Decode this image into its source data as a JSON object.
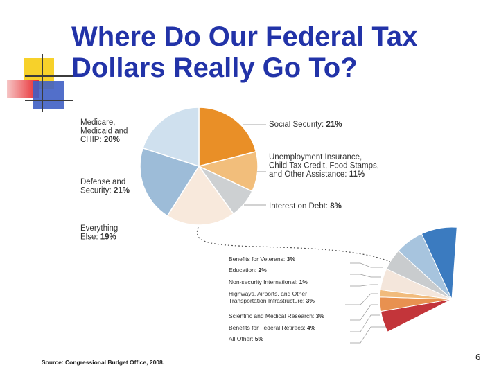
{
  "slide": {
    "title": "Where Do Our Federal Tax\nDollars Really Go To?",
    "source": "Source: Congressional Budget Office, 2008.",
    "page_number": "6"
  },
  "chart_data": [
    {
      "type": "pie",
      "title": "",
      "slices": [
        {
          "label": "Social Security: 21%",
          "value": 21,
          "color": "#e98f27"
        },
        {
          "label": "Unemployment Insurance, Child Tax Credit, Food Stamps, and Other Assistance: 11%",
          "value": 11,
          "color": "#f2be7b"
        },
        {
          "label": "Interest on Debt: 8%",
          "value": 8,
          "color": "#cdd0d2"
        },
        {
          "label": "Everything Else: 19%",
          "value": 19,
          "color": "#f8e9dc"
        },
        {
          "label": "Defense and Security: 21%",
          "value": 21,
          "color": "#9dbcd8"
        },
        {
          "label": "Medicare, Medicaid and CHIP: 20%",
          "value": 20,
          "color": "#cfe0ee"
        }
      ]
    },
    {
      "type": "pie",
      "title": "",
      "breakdown_of": "Everything Else: 19%",
      "slices": [
        {
          "label": "Benefits for Veterans: 3%",
          "value": 3,
          "color": "#c3353a"
        },
        {
          "label": "Education: 2%",
          "value": 2,
          "color": "#e89150"
        },
        {
          "label": "Non-security International: 1%",
          "value": 1,
          "color": "#f1bb7c"
        },
        {
          "label": "Highways, Airports, and Other Transportation Infrastructure: 3%",
          "value": 3,
          "color": "#f4e6db"
        },
        {
          "label": "Scientific and Medical Research: 3%",
          "value": 3,
          "color": "#c9ccce"
        },
        {
          "label": "Benefits for Federal Retirees: 4%",
          "value": 4,
          "color": "#a7c4de"
        },
        {
          "label": "All Other: 5%",
          "value": 5,
          "color": "#3b7bc0"
        }
      ]
    }
  ],
  "labels": {
    "main": [
      [
        "Social Security: ",
        "21%"
      ],
      [
        "Unemployment Insurance,",
        "Child Tax Credit, Food Stamps,",
        "and Other Assistance: ",
        "11%"
      ],
      [
        "Interest on Debt: ",
        "8%"
      ],
      [
        "Everything",
        "Else: ",
        "19%"
      ],
      [
        "Defense and",
        "Security: ",
        "21%"
      ],
      [
        "Medicare,",
        "Medicaid and",
        "CHIP: ",
        "20%"
      ]
    ],
    "breakdown": [
      [
        "Benefits for Veterans: ",
        "3%"
      ],
      [
        "Education: ",
        "2%"
      ],
      [
        "Non-security International: ",
        "1%"
      ],
      [
        "Highways, Airports, and Other",
        "Transportation Infrastructure: ",
        "3%"
      ],
      [
        "Scientific and Medical Research: ",
        "3%"
      ],
      [
        "Benefits for Federal Retirees: ",
        "4%"
      ],
      [
        "All Other: ",
        "5%"
      ]
    ]
  }
}
